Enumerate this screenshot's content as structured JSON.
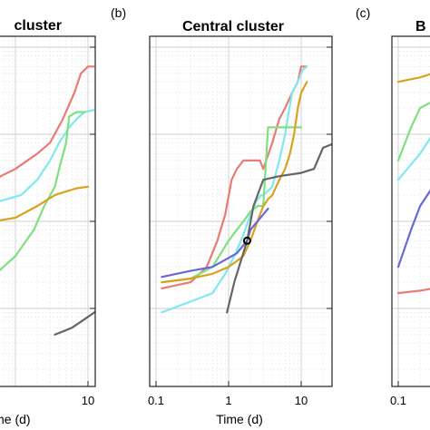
{
  "chart_data": [
    {
      "type": "line",
      "panel_label": "",
      "title": "cluster",
      "xlabel": "Time (d)",
      "ylabel": "",
      "x_scale": "log",
      "y_scale": "log",
      "xlim": [
        0.1,
        30
      ],
      "ylim": [
        10,
        100000
      ],
      "x_tick_labels": [
        "10"
      ],
      "grid": true,
      "series": [
        {
          "color": "#e97b74",
          "x": [
            0.12,
            0.5,
            1.0,
            2.0,
            3.0,
            4.5,
            6.5,
            8.0,
            10.0,
            12.0
          ],
          "y": [
            2000,
            3000,
            4000,
            6000,
            8000,
            15000,
            30000,
            50000,
            60000,
            60000
          ]
        },
        {
          "color": "#7fe8f0",
          "x": [
            0.12,
            0.6,
            1.2,
            2.0,
            3.0,
            4.0,
            5.5,
            7.0,
            9.0,
            12.0
          ],
          "y": [
            1500,
            1700,
            2000,
            3000,
            5000,
            8000,
            12000,
            15000,
            18000,
            19000
          ]
        },
        {
          "color": "#7ee07e",
          "x": [
            0.12,
            0.4,
            1.0,
            1.8,
            2.5,
            3.5,
            4.0,
            5.0,
            5.5,
            7.0,
            9.0
          ],
          "y": [
            120,
            200,
            400,
            800,
            1500,
            2500,
            4000,
            8000,
            16000,
            18000,
            18000
          ]
        },
        {
          "color": "#d9a21e",
          "x": [
            0.12,
            0.5,
            1.0,
            2.0,
            3.5,
            5.0,
            7.0,
            10.0
          ],
          "y": [
            1000,
            1000,
            1100,
            1500,
            2000,
            2200,
            2400,
            2500
          ]
        },
        {
          "color": "#666666",
          "x": [
            3.5,
            6.0,
            10.0,
            20.0,
            27.0,
            30.0
          ],
          "y": [
            50,
            60,
            80,
            120,
            170,
            200
          ]
        }
      ]
    },
    {
      "type": "line",
      "panel_label": "(b)",
      "title": "Central cluster",
      "xlabel": "Time (d)",
      "ylabel": "",
      "x_scale": "log",
      "y_scale": "log",
      "xlim": [
        0.1,
        30
      ],
      "ylim": [
        10,
        100000
      ],
      "x_tick_labels": [
        "0.1",
        "1",
        "10"
      ],
      "grid": true,
      "series": [
        {
          "color": "#e97b74",
          "x": [
            0.12,
            0.3,
            0.5,
            0.7,
            0.9,
            1.1,
            1.3,
            1.6,
            2.0,
            2.3,
            2.7,
            3.0,
            4.0,
            5.0,
            6.0,
            7.5,
            9.0,
            10.0,
            12.0
          ],
          "y": [
            170,
            200,
            300,
            600,
            1200,
            3000,
            4000,
            5000,
            5000,
            5000,
            5000,
            4000,
            8000,
            15000,
            20000,
            30000,
            40000,
            60000,
            60000
          ]
        },
        {
          "color": "#7fe8f0",
          "x": [
            0.12,
            0.3,
            0.6,
            0.9,
            1.2,
            1.6,
            2.0,
            2.4,
            2.8,
            3.0,
            4.0,
            5.0,
            6.0,
            6.5,
            7.5,
            9.0,
            10.5,
            12.0
          ],
          "y": [
            90,
            120,
            150,
            250,
            400,
            700,
            1200,
            1700,
            2000,
            2000,
            2500,
            5000,
            10000,
            15000,
            30000,
            40000,
            55000,
            60000
          ]
        },
        {
          "color": "#7ee07e",
          "x": [
            0.12,
            0.3,
            0.6,
            1.0,
            1.3,
            1.6,
            2.0,
            2.5,
            3.0,
            3.5,
            4.0,
            5.0,
            6.0,
            7.5,
            9.0,
            10.0
          ],
          "y": [
            200,
            220,
            300,
            600,
            800,
            1000,
            1300,
            1500,
            1500,
            12000,
            12000,
            12000,
            12000,
            12000,
            12000,
            12000
          ]
        },
        {
          "color": "#d9a21e",
          "x": [
            0.12,
            0.3,
            0.6,
            1.0,
            1.3,
            1.6,
            2.0,
            2.5,
            3.0,
            3.5,
            4.0,
            5.0,
            6.0,
            7.0,
            8.0,
            9.0,
            10.0,
            12.0
          ],
          "y": [
            200,
            220,
            250,
            300,
            350,
            400,
            600,
            1000,
            1500,
            1800,
            2000,
            3000,
            4000,
            6000,
            10000,
            20000,
            30000,
            40000
          ]
        },
        {
          "color": "#6868d8",
          "x": [
            0.12,
            0.3,
            0.6,
            1.0,
            1.3,
            1.8,
            2.0,
            2.5,
            3.0,
            3.5
          ],
          "y": [
            230,
            270,
            300,
            380,
            430,
            600,
            800,
            1000,
            1200,
            1400
          ]
        },
        {
          "color": "#666666",
          "x": [
            0.95,
            1.2,
            1.8,
            2.2,
            3.0,
            5.0,
            10.0,
            15.0,
            20.0,
            30.0
          ],
          "y": [
            90,
            200,
            600,
            1500,
            3000,
            3300,
            3600,
            4000,
            7000,
            8000
          ]
        }
      ],
      "marker": {
        "x": 1.8,
        "y": 600
      }
    },
    {
      "type": "line",
      "panel_label": "(c)",
      "title": "B",
      "xlabel": "",
      "ylabel": "",
      "x_scale": "log",
      "y_scale": "log",
      "xlim": [
        0.1,
        30
      ],
      "ylim": [
        10,
        100000
      ],
      "x_tick_labels": [
        "0.1"
      ],
      "grid": true,
      "series": [
        {
          "color": "#d9a21e",
          "x": [
            0.1,
            0.2,
            0.3,
            0.6
          ],
          "y": [
            40000,
            45000,
            50000,
            55000
          ]
        },
        {
          "color": "#7ee07e",
          "x": [
            0.1,
            0.15,
            0.2,
            0.3,
            0.5
          ],
          "y": [
            5000,
            12000,
            20000,
            24000,
            25000
          ]
        },
        {
          "color": "#7fe8f0",
          "x": [
            0.1,
            0.2,
            0.3,
            0.5
          ],
          "y": [
            3000,
            6000,
            10000,
            12000
          ]
        },
        {
          "color": "#6868d8",
          "x": [
            0.1,
            0.15,
            0.2,
            0.3,
            0.5
          ],
          "y": [
            300,
            800,
            1500,
            2500,
            3500
          ]
        },
        {
          "color": "#e97b74",
          "x": [
            0.1,
            0.2,
            0.3,
            0.5
          ],
          "y": [
            150,
            160,
            170,
            180
          ]
        }
      ]
    }
  ]
}
